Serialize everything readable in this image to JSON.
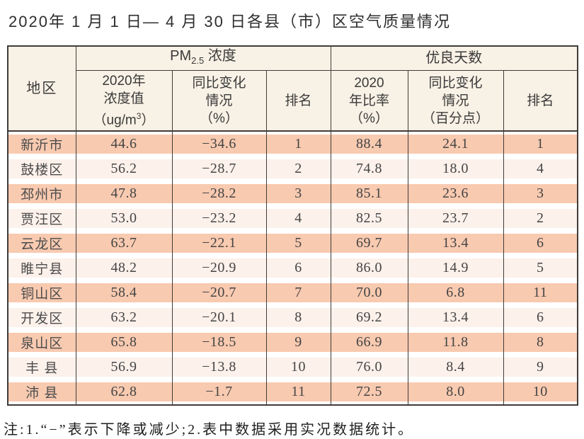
{
  "page": {
    "title": "2020年 1 月 1 日— 4 月 30 日各县（市）区空气质量情况",
    "footnote": "注:1.“−”表示下降或减少;2.表中数据采用实况数据统计。"
  },
  "colors": {
    "stripe_dark": "#f8cab0",
    "stripe_light": "#fdf1eb",
    "header_bg": "#f8f1e5",
    "border": "#3f3b38"
  },
  "table": {
    "corner_header": "地区",
    "group_pm25": {
      "pm": "PM",
      "sub": "2.5",
      "rest": " 浓度"
    },
    "group_good_days": "优良天数",
    "sub_headers": {
      "pm_value": {
        "line1": "2020年",
        "line2": "浓度值",
        "line3_pre": "（ug/m",
        "line3_sup": "3",
        "line3_post": "）"
      },
      "pm_change": {
        "line1": "同比变化",
        "line2": "情况",
        "line3": "（%）"
      },
      "pm_rank": "排名",
      "ratio": {
        "line1": "2020",
        "line2": "年比率",
        "line3": "（%）"
      },
      "ratio_change": {
        "line1": "同比变化",
        "line2": "情况",
        "line3": "（百分点）"
      },
      "ratio_rank": "排名"
    },
    "rows": [
      {
        "region": "新沂市",
        "pm_value": "44.6",
        "pm_change": "−34.6",
        "pm_rank": "1",
        "ratio": "88.4",
        "ratio_change": "24.1",
        "ratio_rank": "1"
      },
      {
        "region": "鼓楼区",
        "pm_value": "56.2",
        "pm_change": "−28.7",
        "pm_rank": "2",
        "ratio": "74.8",
        "ratio_change": "18.0",
        "ratio_rank": "4"
      },
      {
        "region": "邳州市",
        "pm_value": "47.8",
        "pm_change": "−28.2",
        "pm_rank": "3",
        "ratio": "85.1",
        "ratio_change": "23.6",
        "ratio_rank": "3"
      },
      {
        "region": "贾汪区",
        "pm_value": "53.0",
        "pm_change": "−23.2",
        "pm_rank": "4",
        "ratio": "82.5",
        "ratio_change": "23.7",
        "ratio_rank": "2"
      },
      {
        "region": "云龙区",
        "pm_value": "63.7",
        "pm_change": "−22.1",
        "pm_rank": "5",
        "ratio": "69.7",
        "ratio_change": "13.4",
        "ratio_rank": "6"
      },
      {
        "region": "睢宁县",
        "pm_value": "48.2",
        "pm_change": "−20.9",
        "pm_rank": "6",
        "ratio": "86.0",
        "ratio_change": "14.9",
        "ratio_rank": "5"
      },
      {
        "region": "铜山区",
        "pm_value": "58.4",
        "pm_change": "−20.7",
        "pm_rank": "7",
        "ratio": "70.0",
        "ratio_change": "6.8",
        "ratio_rank": "11"
      },
      {
        "region": "开发区",
        "pm_value": "63.2",
        "pm_change": "−20.1",
        "pm_rank": "8",
        "ratio": "69.2",
        "ratio_change": "13.4",
        "ratio_rank": "6"
      },
      {
        "region": "泉山区",
        "pm_value": "65.8",
        "pm_change": "−18.5",
        "pm_rank": "9",
        "ratio": "66.9",
        "ratio_change": "11.8",
        "ratio_rank": "8"
      },
      {
        "region": "丰 县",
        "pm_value": "56.9",
        "pm_change": "−13.8",
        "pm_rank": "10",
        "ratio": "76.0",
        "ratio_change": "8.4",
        "ratio_rank": "9"
      },
      {
        "region": "沛 县",
        "pm_value": "62.8",
        "pm_change": "−1.7",
        "pm_rank": "11",
        "ratio": "72.5",
        "ratio_change": "8.0",
        "ratio_rank": "10"
      }
    ]
  }
}
